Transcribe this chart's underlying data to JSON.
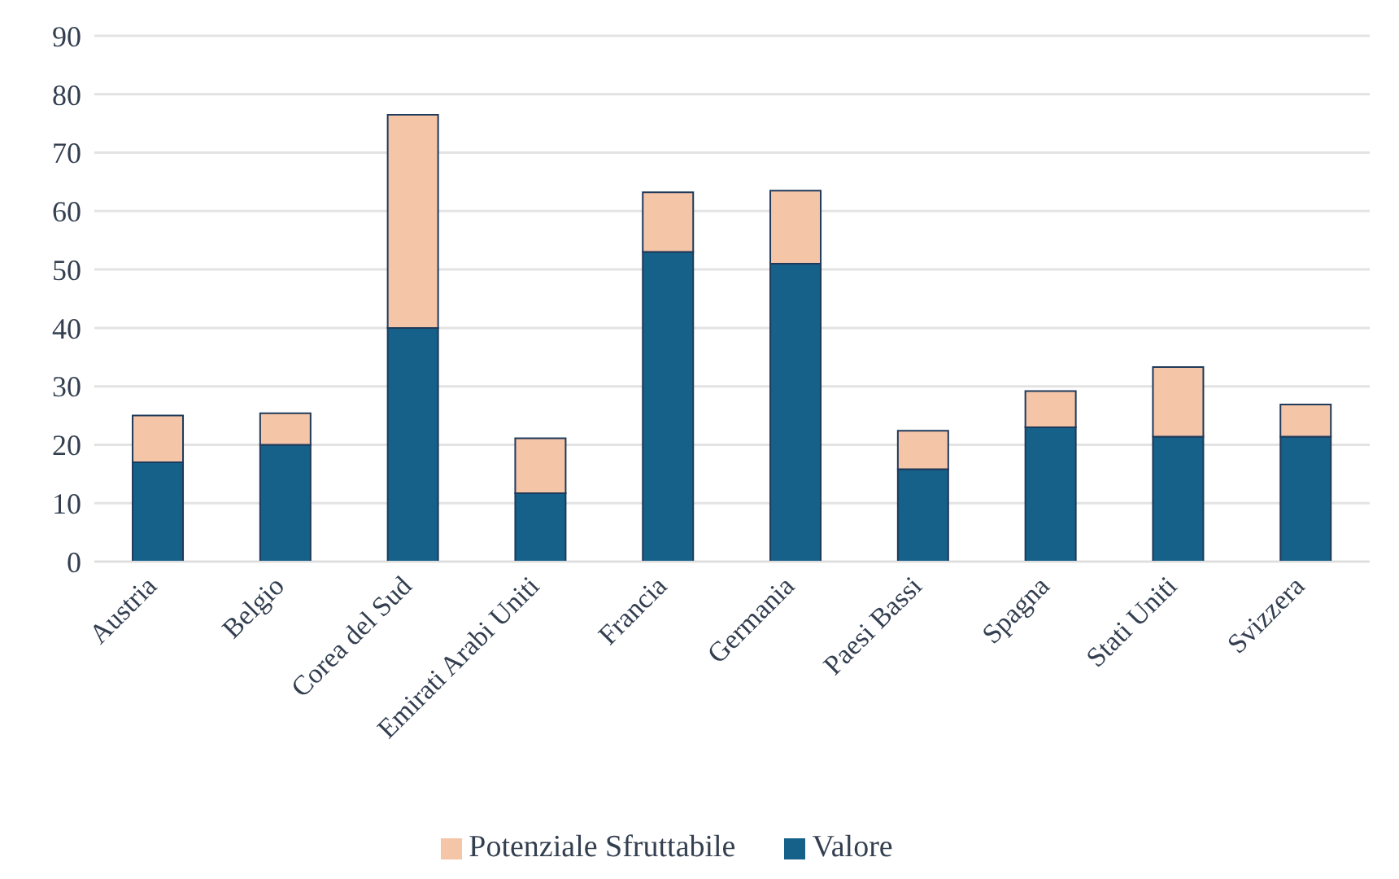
{
  "chart_data": {
    "type": "bar",
    "stacked": true,
    "categories": [
      "Austria",
      "Belgio",
      "Corea del Sud",
      "Emirati Arabi Uniti",
      "Francia",
      "Germania",
      "Paesi Bassi",
      "Spagna",
      "Stati Uniti",
      "Svizzera"
    ],
    "series": [
      {
        "name": "Valore",
        "color": "#15618a",
        "values": [
          17,
          20,
          40,
          11.7,
          53,
          51,
          15.8,
          23,
          21.4,
          21.4
        ]
      },
      {
        "name": "Potenziale Sfruttabile",
        "color": "#f5c5a8",
        "values": [
          8,
          5.4,
          36.5,
          9.4,
          10.2,
          12.5,
          6.6,
          6.2,
          11.9,
          5.5
        ]
      }
    ],
    "ylim": [
      0,
      90
    ],
    "yticks": [
      0,
      10,
      20,
      30,
      40,
      50,
      60,
      70,
      80,
      90
    ],
    "grid": "y",
    "legend": "bottom"
  }
}
